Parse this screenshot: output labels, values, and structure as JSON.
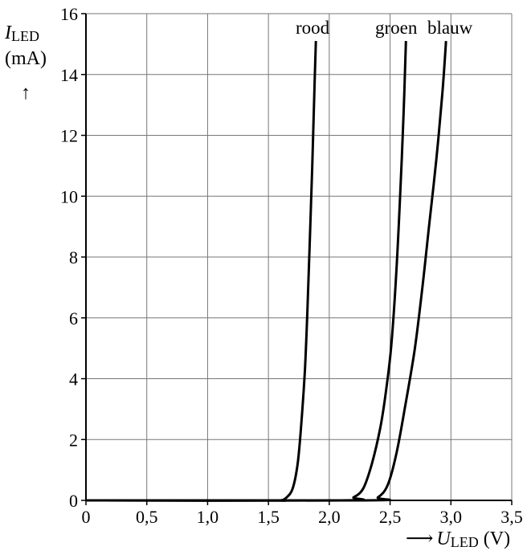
{
  "chart_data": {
    "type": "line",
    "ylabel": {
      "symbol": "I",
      "subscript": "LED",
      "unit": "(mA)",
      "arrow": "↑"
    },
    "xlabel": {
      "arrow": "⟶",
      "symbol": "U",
      "subscript": "LED",
      "unit": "(V)"
    },
    "xlim": [
      0,
      3.5
    ],
    "ylim": [
      0,
      16
    ],
    "x_ticks": [
      0,
      0.5,
      1.0,
      1.5,
      2.0,
      2.5,
      3.0,
      3.5
    ],
    "x_tick_labels": [
      "0",
      "0,5",
      "1,0",
      "1,5",
      "2,0",
      "2,5",
      "3,0",
      "3,5"
    ],
    "y_ticks": [
      0,
      2,
      4,
      6,
      8,
      10,
      12,
      14,
      16
    ],
    "y_tick_labels": [
      "0",
      "2",
      "4",
      "6",
      "8",
      "10",
      "12",
      "14",
      "16"
    ],
    "grid": true,
    "series": [
      {
        "name": "rood",
        "points": [
          [
            0,
            0
          ],
          [
            1.5,
            0
          ],
          [
            1.6,
            0.0
          ],
          [
            1.65,
            0.1
          ],
          [
            1.7,
            0.4
          ],
          [
            1.74,
            1.2
          ],
          [
            1.77,
            2.5
          ],
          [
            1.8,
            4.3
          ],
          [
            1.82,
            6.2
          ],
          [
            1.84,
            8.5
          ],
          [
            1.86,
            11.0
          ],
          [
            1.88,
            13.8
          ],
          [
            1.89,
            15.1
          ]
        ]
      },
      {
        "name": "groen",
        "points": [
          [
            0,
            0
          ],
          [
            2.1,
            0
          ],
          [
            2.2,
            0.1
          ],
          [
            2.28,
            0.4
          ],
          [
            2.35,
            1.2
          ],
          [
            2.42,
            2.4
          ],
          [
            2.47,
            3.7
          ],
          [
            2.51,
            5.1
          ],
          [
            2.55,
            7.4
          ],
          [
            2.58,
            9.8
          ],
          [
            2.61,
            12.6
          ],
          [
            2.63,
            15.1
          ]
        ]
      },
      {
        "name": "blauw",
        "points": [
          [
            0,
            0
          ],
          [
            2.3,
            0
          ],
          [
            2.4,
            0.1
          ],
          [
            2.48,
            0.5
          ],
          [
            2.55,
            1.5
          ],
          [
            2.62,
            3.0
          ],
          [
            2.7,
            4.9
          ],
          [
            2.76,
            6.8
          ],
          [
            2.82,
            9.0
          ],
          [
            2.88,
            11.2
          ],
          [
            2.93,
            13.4
          ],
          [
            2.96,
            15.1
          ]
        ]
      }
    ]
  }
}
